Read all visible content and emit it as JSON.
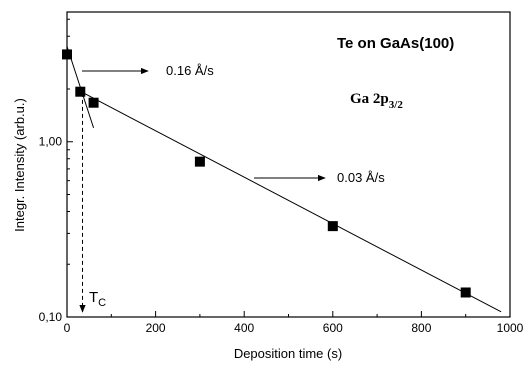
{
  "chart_data": {
    "type": "scatter",
    "title": "Te on GaAs(100)",
    "subtitle": "Ga 2p",
    "subtitle_sub": "3/2",
    "xlabel": "Deposition time (s)",
    "ylabel": "Integr. Intensity (arb.u.)",
    "xlim": [
      0,
      1000
    ],
    "ylim": [
      0.1,
      5.5
    ],
    "yscale": "log",
    "x_ticks": [
      0,
      200,
      400,
      600,
      800,
      1000
    ],
    "x_tick_labels": [
      "0",
      "200",
      "400",
      "600",
      "800",
      "1000"
    ],
    "y_ticks": [
      0.1,
      1.0
    ],
    "y_tick_labels": [
      "0,10",
      "1,00"
    ],
    "grid": false,
    "series": [
      {
        "marker": "square",
        "x": [
          0,
          30,
          60,
          300,
          600,
          900
        ],
        "y": [
          3.15,
          1.93,
          1.67,
          0.77,
          0.33,
          0.138
        ]
      }
    ],
    "fit_lines": [
      {
        "x": [
          0,
          60
        ],
        "y": [
          3.5,
          1.2
        ]
      },
      {
        "x": [
          20,
          980
        ],
        "y": [
          2.0,
          0.107
        ]
      }
    ],
    "transition": {
      "x": 35,
      "y_top": 1.9
    },
    "annotations": {
      "fast_rate": "0.16 Å/s",
      "slow_rate": "0.03 Å/s",
      "tc_main": "T",
      "tc_sub": "C"
    }
  }
}
